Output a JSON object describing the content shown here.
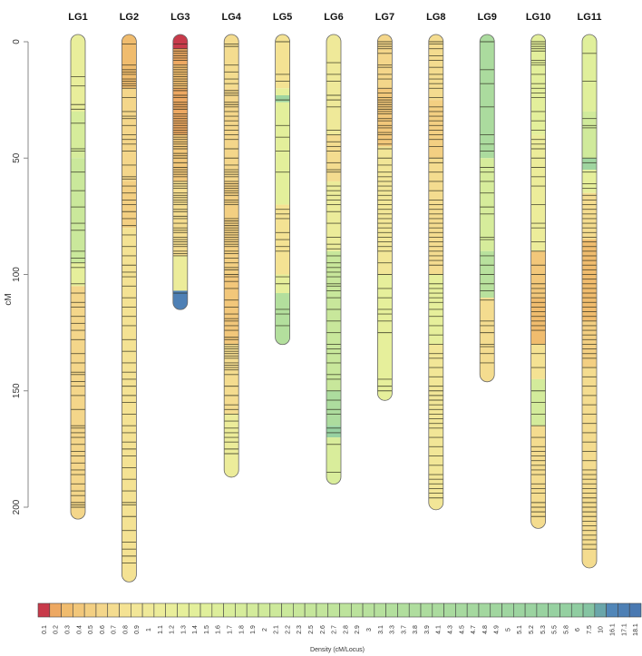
{
  "chart_data": {
    "type": "heatmap",
    "title": "",
    "ylabel": "cM",
    "ylim": [
      0,
      230
    ],
    "yticks": [
      "0",
      "50",
      "100",
      "150",
      "200"
    ],
    "ytick_values": [
      0,
      50,
      100,
      150,
      200
    ],
    "legend": {
      "title": "Density (cM/Locus)",
      "placement": "bottom",
      "labels": [
        "0.1",
        "0.2",
        "0.3",
        "0.4",
        "0.5",
        "0.6",
        "0.7",
        "0.8",
        "0.9",
        "1",
        "1.1",
        "1.2",
        "1.3",
        "1.4",
        "1.5",
        "1.6",
        "1.7",
        "1.8",
        "1.9",
        "2",
        "2.1",
        "2.2",
        "2.3",
        "2.5",
        "2.6",
        "2.7",
        "2.8",
        "2.9",
        "3",
        "3.1",
        "3.3",
        "3.7",
        "3.8",
        "3.9",
        "4.1",
        "4.3",
        "4.5",
        "4.7",
        "4.8",
        "4.9",
        "5",
        "5.1",
        "5.2",
        "5.3",
        "5.5",
        "5.8",
        "6",
        "7.5",
        "10",
        "16.1",
        "17.1",
        "18.1"
      ],
      "colors": [
        "#c83a4a",
        "#eda862",
        "#f0bc6e",
        "#f2c77a",
        "#f3cf82",
        "#f4d68a",
        "#f4dc8f",
        "#f4e293",
        "#f2e697",
        "#efe999",
        "#ecec9a",
        "#e9ee9b",
        "#e6ef9b",
        "#e3ef9b",
        "#e0ef9b",
        "#ddee9b",
        "#d9ed9b",
        "#d6ec9b",
        "#d3eb9b",
        "#d0ea9b",
        "#cde99b",
        "#cae89b",
        "#c8e79b",
        "#c5e69b",
        "#c3e59c",
        "#c0e49c",
        "#bde39c",
        "#bbe29c",
        "#b8e19d",
        "#b6e09d",
        "#b3df9d",
        "#b1de9d",
        "#afdd9e",
        "#addc9e",
        "#abdb9e",
        "#a9da9e",
        "#a7d99f",
        "#a5d89f",
        "#a3d79f",
        "#a1d69f",
        "#9fd5a0",
        "#9dd4a0",
        "#9bd3a0",
        "#99d2a0",
        "#97d1a1",
        "#95d0a1",
        "#90cda1",
        "#85c4a2",
        "#6aa6aa",
        "#5186b8",
        "#4e80b5",
        "#4a79b2"
      ]
    },
    "linkage_groups": [
      {
        "name": "LG1",
        "length": 202,
        "bands": [
          [
            0,
            30,
            11
          ],
          [
            30,
            50,
            17
          ],
          [
            50,
            95,
            21
          ],
          [
            95,
            105,
            12
          ],
          [
            105,
            202,
            5
          ]
        ],
        "markers": [
          15,
          19,
          27,
          29,
          35,
          46,
          47,
          56,
          64,
          71,
          78,
          81,
          90,
          93,
          95,
          97,
          104,
          108,
          112,
          114,
          118,
          121,
          124,
          128,
          134,
          138,
          142,
          143,
          146,
          148,
          152,
          158,
          165,
          166,
          168,
          170,
          173,
          176,
          178,
          181,
          184,
          186,
          190,
          193,
          195,
          198,
          199,
          200
        ]
      },
      {
        "name": "LG2",
        "length": 229,
        "bands": [
          [
            0,
            20,
            2
          ],
          [
            20,
            60,
            5
          ],
          [
            60,
            80,
            4
          ],
          [
            80,
            229,
            7
          ]
        ],
        "markers": [
          1,
          10,
          12,
          13,
          14,
          16,
          17,
          18,
          19,
          20,
          24,
          30,
          32,
          33,
          36,
          40,
          42,
          44,
          47,
          53,
          58,
          59,
          62,
          65,
          68,
          70,
          73,
          76,
          79,
          83,
          88,
          92,
          96,
          99,
          101,
          105,
          110,
          114,
          118,
          122,
          128,
          133,
          138,
          142,
          145,
          148,
          152,
          155,
          160,
          165,
          168,
          172,
          175,
          178,
          183,
          188,
          193,
          198,
          199,
          204,
          210,
          215,
          218,
          221,
          224
        ]
      },
      {
        "name": "LG3",
        "length": 112,
        "bands": [
          [
            0,
            3,
            0
          ],
          [
            3,
            10,
            1
          ],
          [
            10,
            20,
            2
          ],
          [
            20,
            40,
            1
          ],
          [
            40,
            60,
            3
          ],
          [
            60,
            92,
            6
          ],
          [
            92,
            107,
            10
          ],
          [
            107,
            112,
            50
          ]
        ],
        "markers": [
          1,
          3,
          4,
          5,
          6,
          7,
          8,
          10,
          11,
          12,
          13,
          14,
          15,
          16,
          17,
          18,
          19,
          20,
          21,
          23,
          24,
          26,
          27,
          28,
          29,
          31,
          32,
          33,
          34,
          35,
          36,
          37,
          38,
          39,
          40,
          41,
          42,
          43,
          44,
          45,
          46,
          48,
          49,
          50,
          52,
          54,
          55,
          56,
          57,
          58,
          60,
          61,
          62,
          63,
          65,
          66,
          67,
          68,
          69,
          70,
          72,
          73,
          75,
          76,
          78,
          80,
          81,
          82,
          84,
          85,
          86,
          87,
          88,
          90,
          91,
          92,
          108
        ]
      },
      {
        "name": "LG4",
        "length": 184,
        "bands": [
          [
            0,
            20,
            6
          ],
          [
            20,
            60,
            5
          ],
          [
            60,
            100,
            4
          ],
          [
            100,
            130,
            3
          ],
          [
            130,
            160,
            6
          ],
          [
            160,
            184,
            10
          ]
        ],
        "markers": [
          1,
          2,
          10,
          13,
          16,
          18,
          21,
          22,
          23,
          26,
          27,
          28,
          30,
          32,
          34,
          36,
          38,
          40,
          42,
          46,
          50,
          53,
          55,
          56,
          57,
          58,
          60,
          61,
          62,
          63,
          64,
          65,
          66,
          68,
          69,
          70,
          76,
          77,
          78,
          79,
          80,
          81,
          82,
          83,
          84,
          85,
          86,
          87,
          88,
          90,
          91,
          93,
          95,
          97,
          98,
          100,
          101,
          103,
          106,
          111,
          114,
          117,
          119,
          120,
          122,
          124,
          127,
          128,
          130,
          131,
          132,
          133,
          134,
          135,
          136,
          138,
          139,
          140,
          141,
          143,
          148,
          152,
          156,
          158,
          160,
          163,
          166,
          168,
          170,
          172,
          175,
          177
        ]
      },
      {
        "name": "LG5",
        "length": 127,
        "bands": [
          [
            0,
            20,
            7
          ],
          [
            20,
            23,
            12
          ],
          [
            23,
            26,
            40
          ],
          [
            26,
            70,
            13
          ],
          [
            70,
            100,
            7
          ],
          [
            100,
            108,
            12
          ],
          [
            108,
            127,
            30
          ]
        ],
        "markers": [
          0,
          14,
          17,
          25,
          36,
          41,
          47,
          56,
          72,
          74,
          76,
          82,
          85,
          88,
          90,
          101,
          104,
          115,
          117,
          122
        ]
      },
      {
        "name": "LG6",
        "length": 187,
        "bands": [
          [
            0,
            40,
            9
          ],
          [
            40,
            60,
            6
          ],
          [
            60,
            90,
            10
          ],
          [
            90,
            150,
            22
          ],
          [
            150,
            165,
            33
          ],
          [
            165,
            170,
            44
          ],
          [
            170,
            187,
            16
          ]
        ],
        "markers": [
          9,
          14,
          17,
          23,
          25,
          28,
          38,
          40,
          43,
          45,
          47,
          52,
          55,
          56,
          62,
          64,
          66,
          68,
          70,
          73,
          78,
          84,
          87,
          89,
          92,
          95,
          97,
          99,
          101,
          104,
          105,
          107,
          110,
          115,
          120,
          125,
          130,
          132,
          134,
          138,
          143,
          145,
          150,
          154,
          158,
          160,
          166,
          168,
          173,
          185
        ]
      },
      {
        "name": "LG7",
        "length": 151,
        "bands": [
          [
            0,
            20,
            5
          ],
          [
            20,
            45,
            3
          ],
          [
            45,
            100,
            8
          ],
          [
            100,
            151,
            12
          ]
        ],
        "markers": [
          0,
          1,
          2,
          3,
          5,
          10,
          11,
          14,
          16,
          20,
          22,
          24,
          25,
          26,
          27,
          28,
          29,
          30,
          31,
          33,
          34,
          36,
          37,
          39,
          40,
          42,
          44,
          46,
          50,
          53,
          56,
          58,
          60,
          62,
          64,
          66,
          68,
          70,
          72,
          74,
          76,
          78,
          80,
          82,
          84,
          86,
          88,
          90,
          95,
          100,
          106,
          110,
          115,
          117,
          120,
          125,
          145,
          148,
          150
        ]
      },
      {
        "name": "LG8",
        "length": 198,
        "bands": [
          [
            0,
            25,
            6
          ],
          [
            25,
            50,
            4
          ],
          [
            50,
            100,
            6
          ],
          [
            100,
            130,
            12
          ],
          [
            130,
            198,
            8
          ]
        ],
        "markers": [
          0,
          1,
          3,
          6,
          8,
          11,
          14,
          16,
          18,
          20,
          24,
          28,
          30,
          32,
          34,
          36,
          38,
          40,
          42,
          45,
          50,
          52,
          56,
          60,
          64,
          68,
          70,
          72,
          74,
          76,
          78,
          80,
          82,
          84,
          86,
          88,
          90,
          92,
          94,
          96,
          100,
          104,
          106,
          108,
          110,
          112,
          115,
          118,
          122,
          126,
          130,
          134,
          136,
          140,
          144,
          148,
          150,
          152,
          154,
          156,
          158,
          160,
          162,
          164,
          166,
          170,
          174,
          178,
          182,
          186,
          188,
          190,
          192,
          194,
          196
        ]
      },
      {
        "name": "LG9",
        "length": 143,
        "bands": [
          [
            0,
            50,
            34
          ],
          [
            50,
            90,
            17
          ],
          [
            90,
            110,
            28
          ],
          [
            110,
            143,
            6
          ]
        ],
        "markers": [
          0,
          12,
          18,
          28,
          40,
          44,
          47,
          54,
          56,
          60,
          65,
          71,
          74,
          84,
          85,
          92,
          96,
          100,
          104,
          107,
          111,
          120,
          122,
          125,
          130,
          131,
          134,
          138
        ]
      },
      {
        "name": "LG10",
        "length": 206,
        "bands": [
          [
            0,
            40,
            13
          ],
          [
            40,
            90,
            10
          ],
          [
            90,
            110,
            3
          ],
          [
            110,
            130,
            2
          ],
          [
            130,
            145,
            7
          ],
          [
            145,
            165,
            18
          ],
          [
            165,
            206,
            6
          ]
        ],
        "markers": [
          0,
          1,
          2,
          3,
          4,
          8,
          9,
          10,
          14,
          18,
          20,
          22,
          24,
          30,
          34,
          38,
          42,
          44,
          46,
          50,
          54,
          58,
          62,
          70,
          78,
          80,
          86,
          90,
          96,
          100,
          104,
          106,
          108,
          110,
          112,
          114,
          116,
          118,
          120,
          122,
          124,
          130,
          134,
          140,
          150,
          155,
          160,
          165,
          170,
          174,
          176,
          178,
          180,
          182,
          184,
          186,
          190,
          192,
          194,
          198,
          200,
          202,
          204
        ]
      },
      {
        "name": "LG11",
        "length": 223,
        "bands": [
          [
            0,
            30,
            14
          ],
          [
            30,
            50,
            19
          ],
          [
            50,
            55,
            40
          ],
          [
            55,
            65,
            12
          ],
          [
            65,
            85,
            6
          ],
          [
            85,
            120,
            2
          ],
          [
            120,
            140,
            4
          ],
          [
            140,
            223,
            6
          ]
        ],
        "markers": [
          5,
          17,
          33,
          36,
          37,
          50,
          52,
          56,
          61,
          63,
          66,
          68,
          70,
          72,
          74,
          76,
          78,
          80,
          82,
          84,
          86,
          88,
          90,
          92,
          94,
          96,
          98,
          100,
          102,
          104,
          106,
          108,
          110,
          112,
          114,
          116,
          118,
          120,
          122,
          124,
          126,
          128,
          130,
          132,
          134,
          136,
          140,
          144,
          148,
          152,
          156,
          160,
          164,
          168,
          172,
          176,
          180,
          184,
          186,
          188,
          190,
          192,
          194,
          196,
          198,
          200,
          202,
          204,
          206,
          208,
          210,
          212,
          214,
          216,
          218
        ]
      }
    ]
  }
}
